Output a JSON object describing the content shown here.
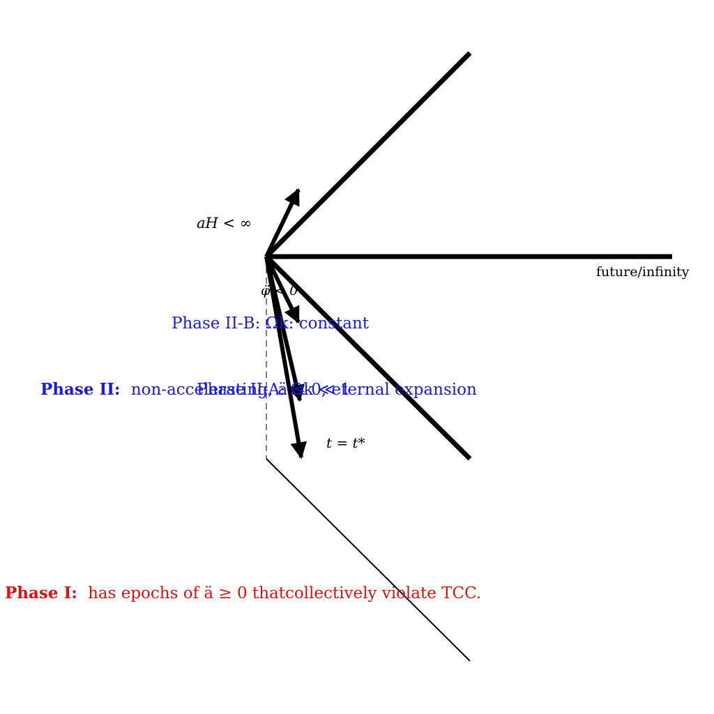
{
  "colors": {
    "ink": "#000000",
    "phase_ii": "#1a1adc",
    "phase_i": "#e01010"
  },
  "labels": {
    "aH": "aH < ∞",
    "future": "future/infinity",
    "phi_ddot": "φ̈ < 0",
    "t_star": "t = t*",
    "phase_iib": "Phase II-B: Ωk: constant",
    "phase_iia": "Phase II-A: Ωk ≪ 1",
    "phase_ii_title": "Phase II:",
    "phase_ii_desc": "non-accelerating, ä ≤ 0, eternal expansion",
    "phase_i_title": "Phase I:",
    "phase_i_desc": "has epochs of ä ≥ 0 thatcollectively violate TCC."
  }
}
